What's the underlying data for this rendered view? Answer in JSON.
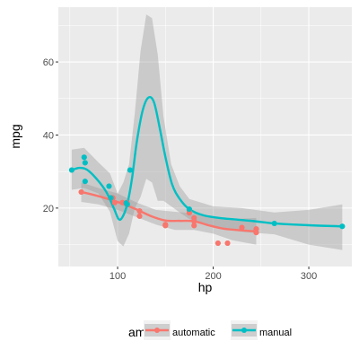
{
  "chart_data": {
    "type": "scatter",
    "xlabel": "hp",
    "ylabel": "mpg",
    "xlim": [
      38,
      345
    ],
    "ylim": [
      4,
      75
    ],
    "x_ticks": [
      100,
      200,
      300
    ],
    "y_ticks": [
      20,
      40,
      60
    ],
    "grid": true,
    "legend": {
      "title": "am",
      "position": "bottom",
      "items": [
        {
          "label": "automatic",
          "color": "#F8766D"
        },
        {
          "label": "manual",
          "color": "#00BFC4"
        }
      ]
    },
    "series": [
      {
        "name": "automatic",
        "color": "#F8766D",
        "points": [
          [
            62,
            24.4
          ],
          [
            95,
            22.8
          ],
          [
            105,
            21.5
          ],
          [
            110,
            21.4
          ],
          [
            123,
            19.2
          ],
          [
            123,
            17.8
          ],
          [
            150,
            15.5
          ],
          [
            150,
            15.2
          ],
          [
            175,
            18.7
          ],
          [
            180,
            16.4
          ],
          [
            180,
            17.3
          ],
          [
            180,
            15.2
          ],
          [
            205,
            10.4
          ],
          [
            215,
            10.4
          ],
          [
            230,
            14.7
          ],
          [
            245,
            14.3
          ],
          [
            245,
            13.3
          ],
          [
            175,
            19.2
          ],
          [
            97,
            21.5
          ]
        ],
        "smooth": [
          [
            62,
            24.4
          ],
          [
            75,
            23.6
          ],
          [
            90,
            22.5
          ],
          [
            105,
            21.2
          ],
          [
            120,
            19.6
          ],
          [
            135,
            17.8
          ],
          [
            150,
            16.6
          ],
          [
            165,
            16.5
          ],
          [
            180,
            16.4
          ],
          [
            195,
            15.3
          ],
          [
            210,
            14.4
          ],
          [
            225,
            14.0
          ],
          [
            245,
            13.6
          ]
        ],
        "band_upper": [
          [
            62,
            27
          ],
          [
            80,
            25.5
          ],
          [
            100,
            24.0
          ],
          [
            120,
            21.5
          ],
          [
            140,
            19.5
          ],
          [
            160,
            19.0
          ],
          [
            180,
            18.6
          ],
          [
            200,
            17.5
          ],
          [
            220,
            17.0
          ],
          [
            245,
            17.3
          ]
        ],
        "band_lower": [
          [
            62,
            21.7
          ],
          [
            80,
            21.0
          ],
          [
            100,
            19.5
          ],
          [
            120,
            17.5
          ],
          [
            140,
            15.5
          ],
          [
            160,
            14.0
          ],
          [
            180,
            14.0
          ],
          [
            200,
            13.0
          ],
          [
            220,
            11.2
          ],
          [
            245,
            10.0
          ]
        ]
      },
      {
        "name": "manual",
        "color": "#00BFC4",
        "points": [
          [
            52,
            30.4
          ],
          [
            65,
            33.9
          ],
          [
            66,
            32.4
          ],
          [
            66,
            27.3
          ],
          [
            91,
            26.0
          ],
          [
            93,
            22.8
          ],
          [
            109,
            21.4
          ],
          [
            110,
            21.0
          ],
          [
            110,
            21.0
          ],
          [
            113,
            30.4
          ],
          [
            175,
            19.7
          ],
          [
            264,
            15.8
          ],
          [
            335,
            15.0
          ]
        ],
        "smooth": [
          [
            52,
            30.4
          ],
          [
            60,
            31.0
          ],
          [
            68,
            30.5
          ],
          [
            78,
            28.0
          ],
          [
            88,
            24.5
          ],
          [
            96,
            20.0
          ],
          [
            101,
            17.0
          ],
          [
            105,
            17.5
          ],
          [
            110,
            21.0
          ],
          [
            115,
            28.0
          ],
          [
            120,
            38.0
          ],
          [
            126,
            46.5
          ],
          [
            132,
            50.2
          ],
          [
            138,
            49.0
          ],
          [
            144,
            42.0
          ],
          [
            150,
            34.0
          ],
          [
            157,
            26.5
          ],
          [
            165,
            22.5
          ],
          [
            175,
            19.7
          ],
          [
            190,
            18.0
          ],
          [
            210,
            17.2
          ],
          [
            240,
            16.5
          ],
          [
            264,
            15.8
          ],
          [
            300,
            15.3
          ],
          [
            335,
            15.0
          ]
        ],
        "band_upper": [
          [
            52,
            36
          ],
          [
            65,
            36.5
          ],
          [
            80,
            32.5
          ],
          [
            92,
            29.5
          ],
          [
            100,
            24.0
          ],
          [
            106,
            27.0
          ],
          [
            112,
            32.0
          ],
          [
            118,
            46.0
          ],
          [
            124,
            63.0
          ],
          [
            130,
            73.0
          ],
          [
            136,
            72.0
          ],
          [
            142,
            62.0
          ],
          [
            148,
            45.0
          ],
          [
            156,
            32.0
          ],
          [
            165,
            26.0
          ],
          [
            175,
            22.5
          ],
          [
            200,
            20.5
          ],
          [
            230,
            20.0
          ],
          [
            264,
            18.8
          ],
          [
            300,
            19.5
          ],
          [
            335,
            21.0
          ]
        ],
        "band_lower": [
          [
            52,
            25.0
          ],
          [
            65,
            25.5
          ],
          [
            80,
            24.0
          ],
          [
            92,
            19.0
          ],
          [
            100,
            11.0
          ],
          [
            106,
            9.5
          ],
          [
            112,
            13.0
          ],
          [
            118,
            20.0
          ],
          [
            124,
            23.0
          ],
          [
            130,
            28.0
          ],
          [
            136,
            27.0
          ],
          [
            142,
            22.0
          ],
          [
            148,
            22.0
          ],
          [
            156,
            20.5
          ],
          [
            165,
            18.8
          ],
          [
            175,
            17.0
          ],
          [
            200,
            15.0
          ],
          [
            230,
            13.5
          ],
          [
            264,
            12.8
          ],
          [
            300,
            10.0
          ],
          [
            335,
            8.5
          ]
        ]
      }
    ]
  },
  "colors": {
    "panel_bg": "#EBEBEB",
    "grid_major": "#FFFFFF",
    "band_fill": "#999999"
  }
}
